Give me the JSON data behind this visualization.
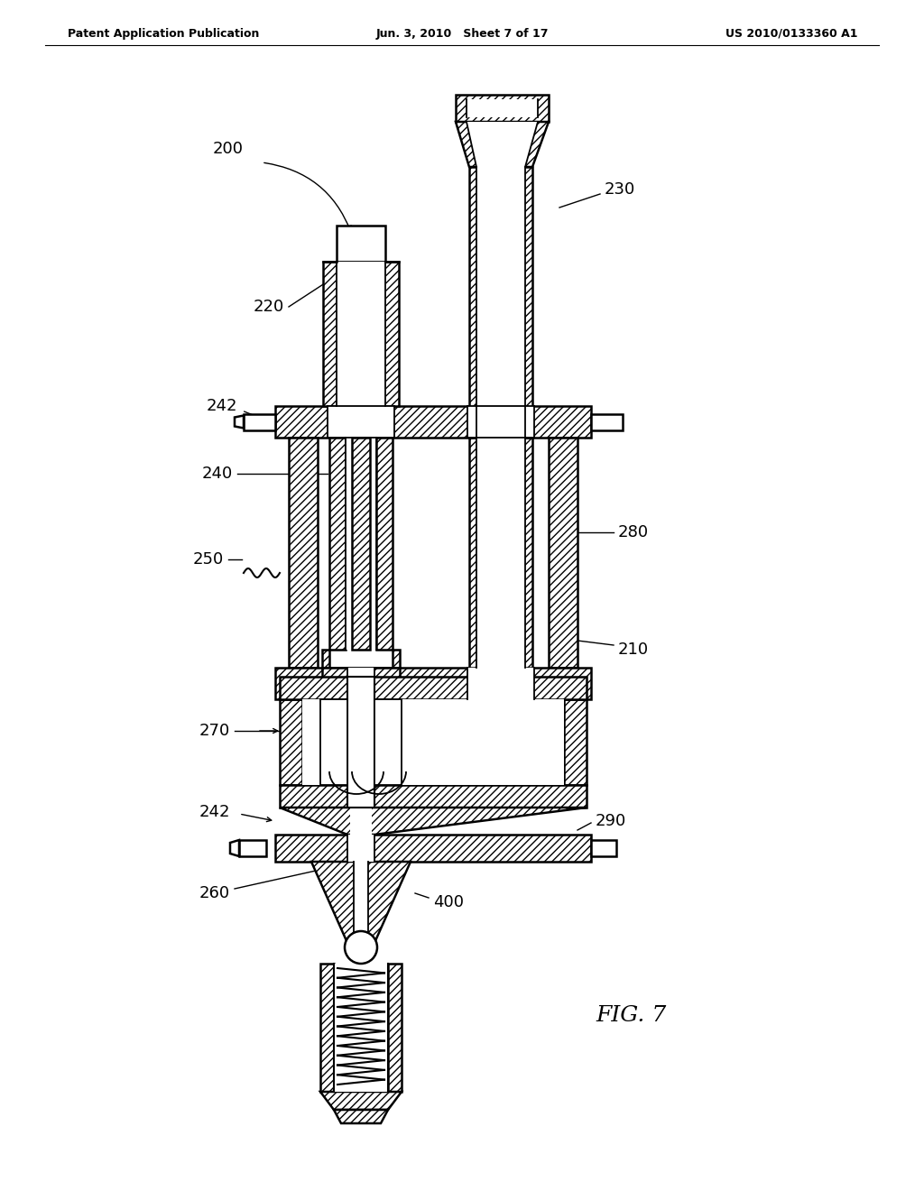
{
  "background_color": "#ffffff",
  "header_left": "Patent Application Publication",
  "header_mid": "Jun. 3, 2010   Sheet 7 of 17",
  "header_right": "US 2010/0133360 A1",
  "fig_label": "FIG. 7"
}
